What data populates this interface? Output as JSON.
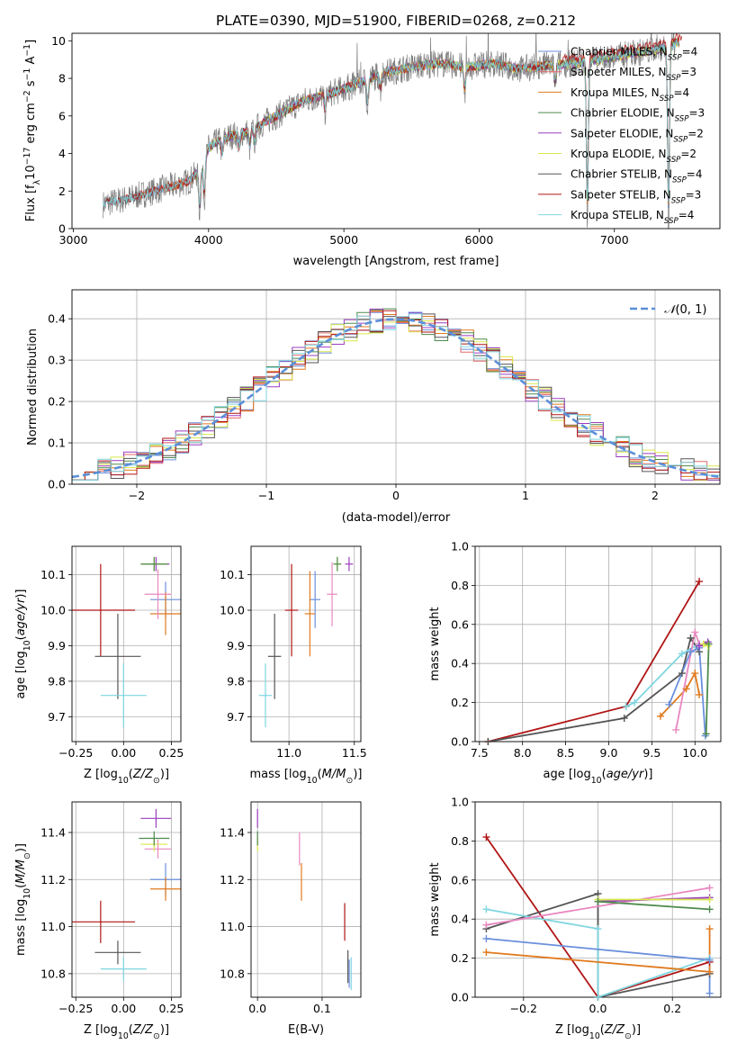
{
  "figure_title": "PLATE=0390, MJD=51900, FIBERID=0268, z=0.212",
  "series_styles": [
    {
      "name": "Chabrier MILES, N$_{SSP}$=4",
      "label": "Chabrier MILES, N",
      "sub": "SSP",
      "suffix": "=4",
      "color": "#6a8fdc"
    },
    {
      "name": "Salpeter MILES, N$_{SSP}$=3",
      "label": "Salpeter MILES, N",
      "sub": "SSP",
      "suffix": "=3",
      "color": "#e46a6a"
    },
    {
      "name": "Kroupa MILES, N$_{SSP}$=4",
      "label": "Kroupa MILES, N",
      "sub": "SSP",
      "suffix": "=4",
      "color": "#e07a1e"
    },
    {
      "name": "Chabrier ELODIE, N$_{SSP}$=3",
      "label": "Chabrier ELODIE, N",
      "sub": "SSP",
      "suffix": "=3",
      "color": "#4e8a4e"
    },
    {
      "name": "Salpeter ELODIE, N$_{SSP}$=2",
      "label": "Salpeter ELODIE, N",
      "sub": "SSP",
      "suffix": "=2",
      "color": "#9a3fbf"
    },
    {
      "name": "Kroupa ELODIE, N$_{SSP}$=2",
      "label": "Kroupa ELODIE, N",
      "sub": "SSP",
      "suffix": "=2",
      "color": "#d9e84a"
    },
    {
      "name": "Chabrier STELIB, N$_{SSP}$=4",
      "label": "Chabrier STELIB, N",
      "sub": "SSP",
      "suffix": "=4",
      "color": "#555555"
    },
    {
      "name": "Salpeter STELIB, N$_{SSP}$=3",
      "label": "Salpeter STELIB, N",
      "sub": "SSP",
      "suffix": "=3",
      "color": "#b01515"
    },
    {
      "name": "Kroupa STELIB, N$_{SSP}$=4",
      "label": "Kroupa STELIB, N",
      "sub": "SSP",
      "suffix": "=4",
      "color": "#7fd6e0"
    }
  ],
  "chart_data": [
    {
      "id": "spectrum",
      "type": "line",
      "xlabel": "wavelength [Angstrom, rest frame]",
      "ylabel": "Flux [f_λ10^-17 erg cm^-2 s^-1 A^-1]",
      "xlim": [
        2990,
        7780
      ],
      "ylim": [
        0,
        10.4
      ],
      "xticks": [
        3000,
        4000,
        5000,
        6000,
        7000
      ],
      "yticks": [
        0,
        2,
        4,
        6,
        8,
        10
      ],
      "grid": false,
      "legend": "top-right",
      "continuum": {
        "x": [
          3220,
          3400,
          3550,
          3700,
          3850,
          3950,
          4000,
          4100,
          4300,
          4500,
          4700,
          4900,
          5100,
          5300,
          5500,
          5700,
          5900,
          6100,
          6300,
          6500,
          6700,
          6900,
          7100,
          7300,
          7400,
          7450
        ],
        "y": [
          1.3,
          1.6,
          1.9,
          2.2,
          2.5,
          3.2,
          4.3,
          4.8,
          5.2,
          6.0,
          6.8,
          7.2,
          7.7,
          8.3,
          8.6,
          8.8,
          8.6,
          8.8,
          8.5,
          8.7,
          8.8,
          9.0,
          9.3,
          9.5,
          9.7,
          9.9
        ]
      },
      "series_labels": [
        "Chabrier MILES, N$_{SSP}$=4",
        "Salpeter MILES, N$_{SSP}$=3",
        "Kroupa MILES, N$_{SSP}$=4",
        "Chabrier ELODIE, N$_{SSP}$=3",
        "Salpeter ELODIE, N$_{SSP}$=2",
        "Kroupa ELODIE, N$_{SSP}$=2",
        "Chabrier STELIB, N$_{SSP}$=4",
        "Salpeter STELIB, N$_{SSP}$=3",
        "Kroupa STELIB, N$_{SSP}$=4"
      ]
    },
    {
      "id": "residuals",
      "type": "histogram",
      "xlabel": "(data-model)/error",
      "ylabel": "Normed distribution",
      "xlim": [
        -2.5,
        2.5
      ],
      "ylim": [
        0,
        0.47
      ],
      "xticks": [
        -2,
        -1,
        0,
        1,
        2
      ],
      "yticks": [
        0.0,
        0.1,
        0.2,
        0.3,
        0.4
      ],
      "grid": true,
      "legend": "top-right",
      "reference": {
        "name": "𝒩(0, 1)",
        "mean": 0,
        "sigma": 1,
        "color": "#5b8fd9"
      }
    },
    {
      "id": "age_vs_Z",
      "type": "scatter",
      "xlabel": "Z [log10(Z/Z⊙)]",
      "ylabel": "age [log10(age/yr)]",
      "xlim": [
        -0.27,
        0.3
      ],
      "ylim": [
        9.63,
        10.18
      ],
      "xticks": [
        -0.25,
        0.0,
        0.25
      ],
      "yticks": [
        9.7,
        9.8,
        9.9,
        10.0,
        10.1
      ],
      "grid": true,
      "points": [
        {
          "c": "#6a8fdc",
          "x": 0.22,
          "y": 10.03,
          "xe": 0.08,
          "ye": 0.05
        },
        {
          "c": "#e07a1e",
          "x": 0.22,
          "y": 9.99,
          "xe": 0.08,
          "ye": 0.06
        },
        {
          "c": "#e987c0",
          "x": 0.18,
          "y": 10.045,
          "xe": 0.07,
          "ye": 0.07
        },
        {
          "c": "#9a3fbf",
          "x": 0.17,
          "y": 10.13,
          "xe": 0.07,
          "ye": 0.02
        },
        {
          "c": "#d9e84a",
          "x": 0.16,
          "y": 10.13,
          "xe": 0.07,
          "ye": 0.02
        },
        {
          "c": "#4e8a4e",
          "x": 0.16,
          "y": 10.13,
          "xe": 0.07,
          "ye": 0.02
        },
        {
          "c": "#b01515",
          "x": -0.12,
          "y": 10.0,
          "xe": 0.18,
          "ye": 0.13
        },
        {
          "c": "#555555",
          "x": -0.03,
          "y": 9.87,
          "xe": 0.12,
          "ye": 0.12
        },
        {
          "c": "#7fd6e0",
          "x": 0.0,
          "y": 9.76,
          "xe": 0.12,
          "ye": 0.09
        }
      ]
    },
    {
      "id": "age_vs_mass",
      "type": "scatter",
      "xlabel": "mass [log10(M/M⊙)]",
      "ylabel": "",
      "xlim": [
        10.71,
        11.55
      ],
      "ylim": [
        9.63,
        10.18
      ],
      "xticks": [
        11.0,
        11.5
      ],
      "yticks": [
        9.7,
        9.8,
        9.9,
        10.0,
        10.1
      ],
      "grid": true,
      "points": [
        {
          "c": "#6a8fdc",
          "x": 11.2,
          "y": 10.03,
          "xe": 0.04,
          "ye": 0.08
        },
        {
          "c": "#e07a1e",
          "x": 11.16,
          "y": 9.99,
          "xe": 0.04,
          "ye": 0.12
        },
        {
          "c": "#e987c0",
          "x": 11.33,
          "y": 10.045,
          "xe": 0.04,
          "ye": 0.09
        },
        {
          "c": "#9a3fbf",
          "x": 11.46,
          "y": 10.13,
          "xe": 0.03,
          "ye": 0.02
        },
        {
          "c": "#d9e84a",
          "x": 11.37,
          "y": 10.13,
          "xe": 0.03,
          "ye": 0.02
        },
        {
          "c": "#4e8a4e",
          "x": 11.37,
          "y": 10.13,
          "xe": 0.03,
          "ye": 0.02
        },
        {
          "c": "#b01515",
          "x": 11.02,
          "y": 10.0,
          "xe": 0.05,
          "ye": 0.13
        },
        {
          "c": "#555555",
          "x": 10.89,
          "y": 9.87,
          "xe": 0.05,
          "ye": 0.12
        },
        {
          "c": "#7fd6e0",
          "x": 10.82,
          "y": 9.76,
          "xe": 0.05,
          "ye": 0.09
        }
      ]
    },
    {
      "id": "weight_vs_age",
      "type": "line",
      "xlabel": "age [log10(age/yr)]",
      "ylabel": "mass weight",
      "xlim": [
        7.45,
        10.3
      ],
      "ylim": [
        0,
        1
      ],
      "xticks": [
        7.5,
        8.0,
        8.5,
        9.0,
        9.5,
        10.0
      ],
      "yticks": [
        0.0,
        0.2,
        0.4,
        0.6,
        0.8,
        1.0
      ],
      "grid": true,
      "series": [
        {
          "c": "#b01515",
          "x": [
            7.6,
            9.2,
            10.05
          ],
          "y": [
            0.0,
            0.18,
            0.82
          ]
        },
        {
          "c": "#555555",
          "x": [
            7.6,
            9.18,
            9.85,
            9.95,
            10.05
          ],
          "y": [
            0.0,
            0.12,
            0.35,
            0.53,
            0.46
          ]
        },
        {
          "c": "#7fd6e0",
          "x": [
            9.2,
            9.3,
            9.85,
            10.05
          ],
          "y": [
            0.18,
            0.2,
            0.45,
            0.5
          ]
        },
        {
          "c": "#6a8fdc",
          "x": [
            9.7,
            9.95,
            10.05,
            10.12
          ],
          "y": [
            0.19,
            0.46,
            0.48,
            0.03
          ]
        },
        {
          "c": "#e07a1e",
          "x": [
            9.6,
            9.9,
            10.0,
            10.05
          ],
          "y": [
            0.13,
            0.27,
            0.35,
            0.24
          ]
        },
        {
          "c": "#e987c0",
          "x": [
            9.78,
            10.0,
            10.05
          ],
          "y": [
            0.06,
            0.56,
            0.5
          ]
        },
        {
          "c": "#9a3fbf",
          "x": [
            10.05,
            10.15
          ],
          "y": [
            0.49,
            0.51
          ]
        },
        {
          "c": "#d9e84a",
          "x": [
            10.1,
            10.15
          ],
          "y": [
            0.5,
            0.49
          ]
        },
        {
          "c": "#4e8a4e",
          "x": [
            10.13,
            10.16
          ],
          "y": [
            0.04,
            0.5
          ]
        }
      ]
    },
    {
      "id": "mass_vs_Z",
      "type": "scatter",
      "xlabel": "Z [log10(Z/Z⊙)]",
      "ylabel": "mass [log10(M/M⊙)]",
      "xlim": [
        -0.27,
        0.3
      ],
      "ylim": [
        10.7,
        11.53
      ],
      "xticks": [
        -0.25,
        0.0,
        0.25
      ],
      "yticks": [
        10.8,
        11.0,
        11.2,
        11.4
      ],
      "grid": true,
      "points": [
        {
          "c": "#6a8fdc",
          "x": 0.22,
          "y": 11.2,
          "xe": 0.08,
          "ye": 0.07
        },
        {
          "c": "#e07a1e",
          "x": 0.22,
          "y": 11.16,
          "xe": 0.08,
          "ye": 0.05
        },
        {
          "c": "#e987c0",
          "x": 0.18,
          "y": 11.33,
          "xe": 0.07,
          "ye": 0.04
        },
        {
          "c": "#9a3fbf",
          "x": 0.17,
          "y": 11.46,
          "xe": 0.08,
          "ye": 0.04
        },
        {
          "c": "#d9e84a",
          "x": 0.16,
          "y": 11.35,
          "xe": 0.07,
          "ye": 0.03
        },
        {
          "c": "#4e8a4e",
          "x": 0.16,
          "y": 11.375,
          "xe": 0.08,
          "ye": 0.03
        },
        {
          "c": "#b01515",
          "x": -0.12,
          "y": 11.02,
          "xe": 0.18,
          "ye": 0.09
        },
        {
          "c": "#555555",
          "x": -0.03,
          "y": 10.89,
          "xe": 0.12,
          "ye": 0.05
        },
        {
          "c": "#7fd6e0",
          "x": 0.0,
          "y": 10.82,
          "xe": 0.12,
          "ye": 0.05
        }
      ]
    },
    {
      "id": "mass_vs_ebv",
      "type": "scatter",
      "xlabel": "E(B-V)",
      "ylabel": "",
      "xlim": [
        -0.01,
        0.16
      ],
      "ylim": [
        10.7,
        11.53
      ],
      "xticks": [
        0.0,
        0.1
      ],
      "yticks": [
        10.8,
        11.0,
        11.2,
        11.4
      ],
      "grid": true,
      "points": [
        {
          "c": "#9a3fbf",
          "x": 0.0,
          "y": 11.46,
          "xe": 0,
          "ye": 0.04
        },
        {
          "c": "#d9e84a",
          "x": 0.0,
          "y": 11.35,
          "xe": 0,
          "ye": 0.03
        },
        {
          "c": "#4e8a4e",
          "x": 0.0,
          "y": 11.375,
          "xe": 0,
          "ye": 0.03
        },
        {
          "c": "#e987c0",
          "x": 0.065,
          "y": 11.33,
          "xe": 0,
          "ye": 0.07
        },
        {
          "c": "#e07a1e",
          "x": 0.068,
          "y": 11.19,
          "xe": 0,
          "ye": 0.08
        },
        {
          "c": "#b01515",
          "x": 0.135,
          "y": 11.02,
          "xe": 0,
          "ye": 0.08
        },
        {
          "c": "#555555",
          "x": 0.14,
          "y": 10.83,
          "xe": 0,
          "ye": 0.07
        },
        {
          "c": "#6a8fdc",
          "x": 0.142,
          "y": 10.8,
          "xe": 0,
          "ye": 0.06
        },
        {
          "c": "#7fd6e0",
          "x": 0.145,
          "y": 10.8,
          "xe": 0,
          "ye": 0.07
        }
      ]
    },
    {
      "id": "weight_vs_Z",
      "type": "line",
      "xlabel": "Z [log10(Z/Z⊙)]",
      "ylabel": "mass weight",
      "xlim": [
        -0.33,
        0.33
      ],
      "ylim": [
        0,
        1
      ],
      "xticks": [
        -0.2,
        0.0,
        0.2
      ],
      "yticks": [
        0.0,
        0.2,
        0.4,
        0.6,
        0.8,
        1.0
      ],
      "grid": true,
      "series": [
        {
          "c": "#b01515",
          "x": [
            -0.3,
            0.0,
            0.3
          ],
          "y": [
            0.82,
            0.0,
            0.18
          ]
        },
        {
          "c": "#555555",
          "x": [
            -0.3,
            0.0,
            0.0,
            0.3
          ],
          "y": [
            0.35,
            0.53,
            0.0,
            0.12
          ]
        },
        {
          "c": "#7fd6e0",
          "x": [
            -0.3,
            0.0,
            0.0,
            0.3
          ],
          "y": [
            0.45,
            0.35,
            0.0,
            0.2
          ]
        },
        {
          "c": "#6a8fdc",
          "x": [
            -0.3,
            0.3,
            0.3
          ],
          "y": [
            0.3,
            0.19,
            0.02
          ]
        },
        {
          "c": "#e07a1e",
          "x": [
            -0.3,
            0.3,
            0.3
          ],
          "y": [
            0.23,
            0.13,
            0.35
          ]
        },
        {
          "c": "#e987c0",
          "x": [
            -0.3,
            0.3
          ],
          "y": [
            0.37,
            0.56
          ]
        },
        {
          "c": "#9a3fbf",
          "x": [
            0.0,
            0.3
          ],
          "y": [
            0.49,
            0.51
          ]
        },
        {
          "c": "#d9e84a",
          "x": [
            0.0,
            0.3
          ],
          "y": [
            0.5,
            0.5
          ]
        },
        {
          "c": "#4e8a4e",
          "x": [
            0.0,
            0.3
          ],
          "y": [
            0.49,
            0.45
          ]
        }
      ]
    }
  ]
}
